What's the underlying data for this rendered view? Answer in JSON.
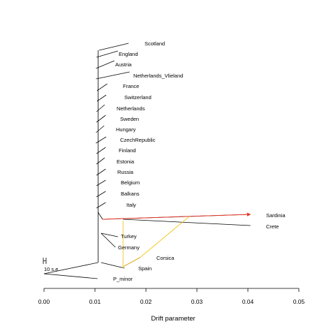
{
  "chart_data": {
    "type": "tree",
    "xlabel": "Drift parameter",
    "xlim": [
      0.0,
      0.05
    ],
    "x_ticks": [
      "0.00",
      "0.01",
      "0.02",
      "0.03",
      "0.04",
      "0.05"
    ],
    "scale_bar_label": "10 s.e.",
    "root": 0.0,
    "backbone_x": 0.0106,
    "leaves": [
      {
        "name": "Scotland",
        "drift": 0.0166
      },
      {
        "name": "England",
        "drift": 0.0145
      },
      {
        "name": "Austria",
        "drift": 0.0138
      },
      {
        "name": "Netherlands_Vlieland",
        "drift": 0.0168
      },
      {
        "name": "France",
        "drift": 0.0124
      },
      {
        "name": "Switzerland",
        "drift": 0.0122
      },
      {
        "name": "Netherlands",
        "drift": 0.0119
      },
      {
        "name": "Sweden",
        "drift": 0.0121
      },
      {
        "name": "Hungary",
        "drift": 0.0118
      },
      {
        "name": "CzechRepublic",
        "drift": 0.0122
      },
      {
        "name": "Finland",
        "drift": 0.0121
      },
      {
        "name": "Estonia",
        "drift": 0.0119
      },
      {
        "name": "Russia",
        "drift": 0.0121
      },
      {
        "name": "Belgium",
        "drift": 0.0121
      },
      {
        "name": "Balkans",
        "drift": 0.0121
      },
      {
        "name": "Italy",
        "drift": 0.0121
      },
      {
        "name": "Sardinia",
        "drift": 0.0405
      },
      {
        "name": "Crete",
        "drift": 0.0405
      },
      {
        "name": "Turkey",
        "drift": 0.0145
      },
      {
        "name": "Germany",
        "drift": 0.014
      },
      {
        "name": "Corsica",
        "drift": 0.0188
      },
      {
        "name": "Spain",
        "drift": 0.0158
      },
      {
        "name": "P_minor",
        "drift": 0.0105
      }
    ],
    "migration_edges": [
      {
        "to": "Sardinia",
        "color": "#e8311d"
      },
      {
        "to": "Corsica",
        "color": "#f5c518"
      },
      {
        "to": "Spain",
        "color": "#f5c518"
      }
    ],
    "colors": {
      "tree": "#000000",
      "migration_strong": "#e8311d",
      "migration_weak": "#f5c518"
    }
  }
}
